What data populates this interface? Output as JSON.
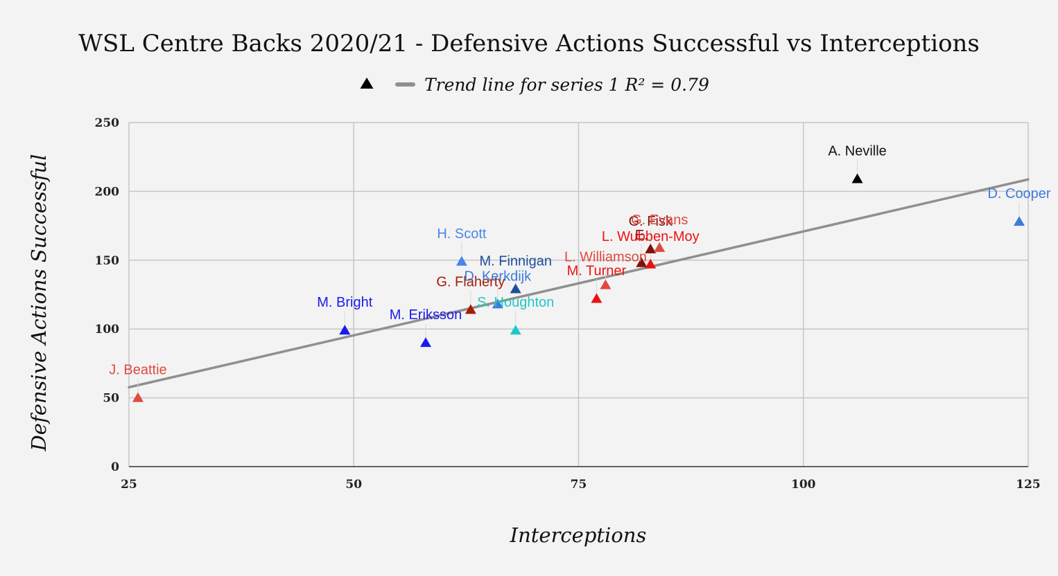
{
  "chart_data": {
    "type": "scatter",
    "title": "WSL Centre Backs 2020/21 - Defensive Actions Successful vs Interceptions",
    "xlabel": "Interceptions",
    "ylabel": "Defensive Actions Successful",
    "xlim": [
      25,
      125
    ],
    "ylim": [
      0,
      250
    ],
    "x_ticks": [
      25,
      50,
      75,
      100,
      125
    ],
    "y_ticks": [
      0,
      50,
      100,
      150,
      200,
      250
    ],
    "grid": true,
    "legend_placement": "top-center",
    "legend": {
      "series_label": "",
      "trend_label": "Trend line for series 1 R² = 0.79"
    },
    "trendline": {
      "type": "linear",
      "r_squared": 0.79,
      "slope": 1.51,
      "intercept": 19.9,
      "color": "#8f8f8f"
    },
    "marker_shape": "triangle",
    "points": [
      {
        "label": "J. Beattie",
        "x": 26,
        "y": 50,
        "color": "#e0493e",
        "label_color": "#e0493e"
      },
      {
        "label": "M. Bright",
        "x": 49,
        "y": 99,
        "color": "#1a1aee",
        "label_color": "#1a1aee"
      },
      {
        "label": "M. Eriksson",
        "x": 58,
        "y": 90,
        "color": "#1a1aee",
        "label_color": "#1a1aee"
      },
      {
        "label": "H. Scott",
        "x": 62,
        "y": 149,
        "color": "#4a86e8",
        "label_color": "#4a86e8"
      },
      {
        "label": "G. Flaherty",
        "x": 63,
        "y": 114,
        "color": "#a61c00",
        "label_color": "#a61c00"
      },
      {
        "label": "D. Kerkdijk",
        "x": 66,
        "y": 118,
        "color": "#3d7bd9",
        "label_color": "#3d7bd9"
      },
      {
        "label": "M. Finnigan",
        "x": 68,
        "y": 129,
        "color": "#1f4e9c",
        "label_color": "#1f4e9c"
      },
      {
        "label": "S. Houghton",
        "x": 68,
        "y": 99,
        "color": "#1ec8c8",
        "label_color": "#1ec8c8"
      },
      {
        "label": "M. Turner",
        "x": 77,
        "y": 122,
        "color": "#ee1111",
        "label_color": "#ee1111"
      },
      {
        "label": "L. Williamson",
        "x": 78,
        "y": 132,
        "color": "#e0493e",
        "label_color": "#e0493e"
      },
      {
        "label": "E.",
        "x": 82,
        "y": 148,
        "color": "#7f1010",
        "label_color": "#7f1010"
      },
      {
        "label": "G. Fisk",
        "x": 83,
        "y": 158,
        "color": "#7f1010",
        "label_color": "#7f1010"
      },
      {
        "label": "L. Wubben-Moy",
        "x": 83,
        "y": 147,
        "color": "#ee1111",
        "label_color": "#ee1111"
      },
      {
        "label": "G. Evans",
        "x": 84,
        "y": 159,
        "color": "#e0493e",
        "label_color": "#e0493e"
      },
      {
        "label": "A. Neville",
        "x": 106,
        "y": 209,
        "color": "#000000",
        "label_color": "#111111"
      },
      {
        "label": "D. Cooper",
        "x": 124,
        "y": 178,
        "color": "#3d7bd9",
        "label_color": "#3d7bd9"
      }
    ]
  }
}
